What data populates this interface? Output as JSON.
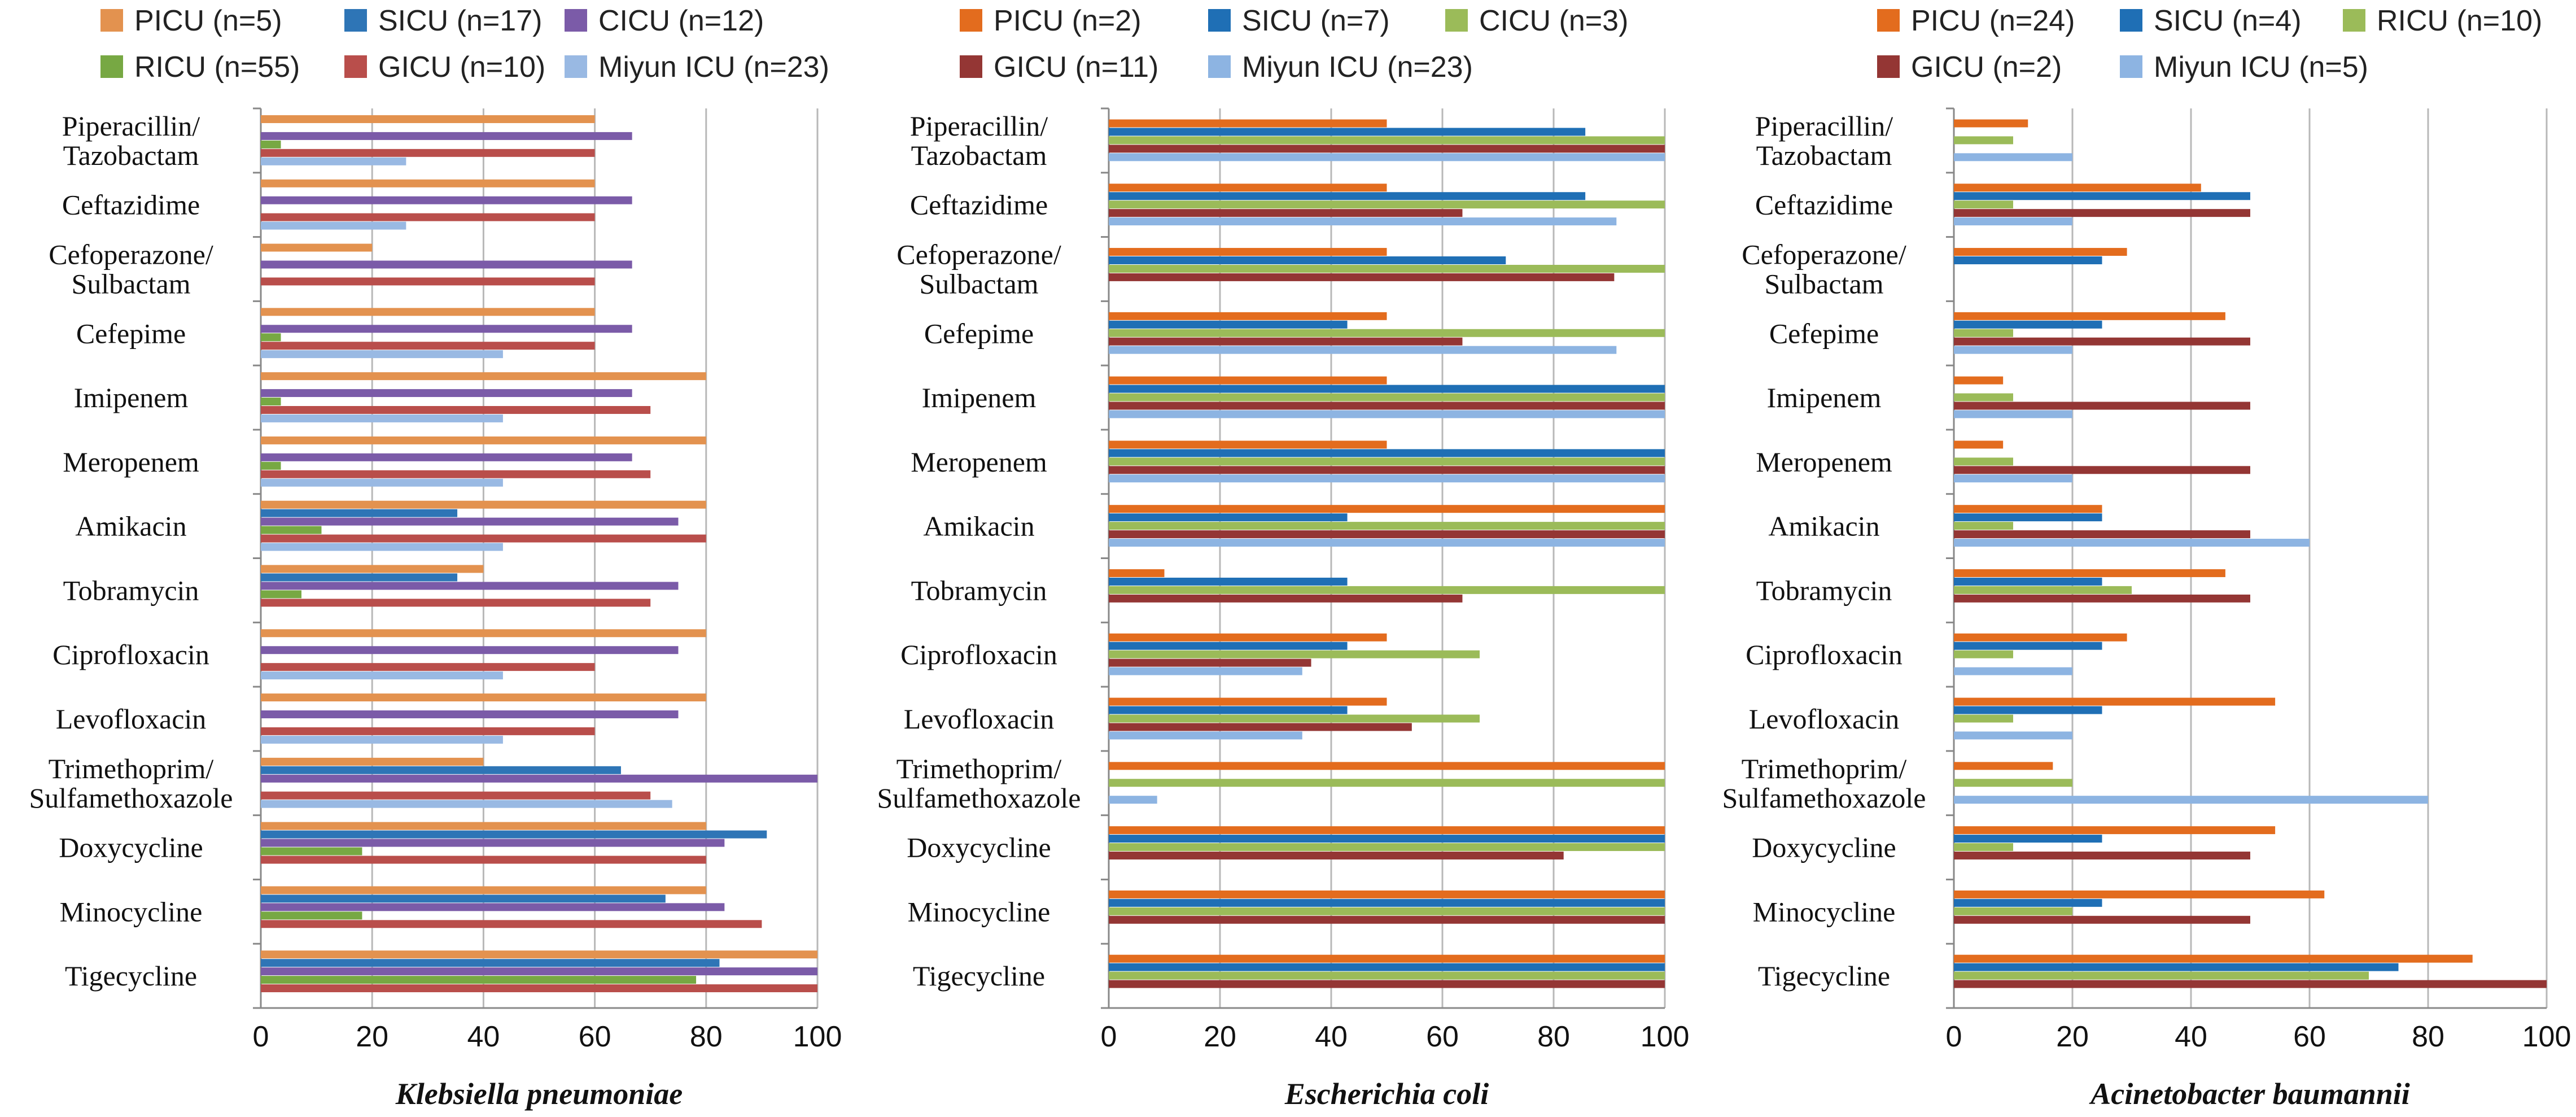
{
  "chart_data": [
    {
      "type": "bar",
      "orientation": "horizontal",
      "title": "",
      "xlabel": "Klebsiella pneumoniae",
      "ylabel": "",
      "xlim": [
        0,
        100
      ],
      "xticks": [
        0,
        20,
        40,
        60,
        80,
        100
      ],
      "grid": true,
      "legend_position": "top",
      "categories": [
        "Piperacillin/\nTazobactam",
        "Ceftazidime",
        "Cefoperazone/\nSulbactam",
        "Cefepime",
        "Imipenem",
        "Meropenem",
        "Amikacin",
        "Tobramycin",
        "Ciprofloxacin",
        "Levofloxacin",
        "Trimethoprim/\nSulfamethoxazole",
        "Doxycycline",
        "Minocycline",
        "Tigecycline"
      ],
      "series": [
        {
          "name": "PICU (n=5)",
          "color": "#E3924F",
          "values": [
            60,
            60,
            20,
            60,
            80,
            80,
            80,
            40,
            80,
            80,
            40,
            80,
            80,
            100
          ]
        },
        {
          "name": "SICU (n=17)",
          "color": "#2E75B6",
          "values": [
            0,
            0,
            0,
            0,
            0,
            0,
            35.3,
            35.3,
            0,
            0,
            64.7,
            90.9,
            72.7,
            82.4
          ]
        },
        {
          "name": "CICU (n=12)",
          "color": "#7B5BA8",
          "values": [
            66.7,
            66.7,
            66.7,
            66.7,
            66.7,
            66.7,
            75,
            75,
            75,
            75,
            100,
            83.3,
            83.3,
            100
          ]
        },
        {
          "name": "RICU (n=55)",
          "color": "#77A843",
          "values": [
            3.6,
            0,
            0,
            3.6,
            3.6,
            3.6,
            10.9,
            7.3,
            0,
            0,
            0,
            18.2,
            18.2,
            78.2
          ]
        },
        {
          "name": "GICU (n=10)",
          "color": "#B94E4B",
          "values": [
            60,
            60,
            60,
            60,
            70,
            70,
            80,
            70,
            60,
            60,
            70,
            80,
            90,
            100
          ]
        },
        {
          "name": "Miyun ICU (n=23)",
          "color": "#99B9E3",
          "values": [
            26.1,
            26.1,
            0,
            43.5,
            43.5,
            43.5,
            43.5,
            0,
            43.5,
            43.5,
            73.9,
            0,
            0,
            0
          ]
        }
      ],
      "legend_order": [
        [
          "PICU (n=5)",
          "SICU (n=17)",
          "CICU (n=12)"
        ],
        [
          "RICU (n=55)",
          "GICU (n=10)",
          "Miyun ICU (n=23)"
        ]
      ]
    },
    {
      "type": "bar",
      "orientation": "horizontal",
      "title": "",
      "xlabel": "Escherichia coli",
      "ylabel": "",
      "xlim": [
        0,
        100
      ],
      "xticks": [
        0,
        20,
        40,
        60,
        80,
        100
      ],
      "grid": true,
      "legend_position": "top",
      "categories": [
        "Piperacillin/\nTazobactam",
        "Ceftazidime",
        "Cefoperazone/\nSulbactam",
        "Cefepime",
        "Imipenem",
        "Meropenem",
        "Amikacin",
        "Tobramycin",
        "Ciprofloxacin",
        "Levofloxacin",
        "Trimethoprim/\nSulfamethoxazole",
        "Doxycycline",
        "Minocycline",
        "Tigecycline"
      ],
      "series": [
        {
          "name": "PICU (n=2)",
          "color": "#E36C1E",
          "values": [
            50,
            50,
            50,
            50,
            50,
            50,
            100,
            10,
            50,
            50,
            100,
            100,
            100,
            100
          ]
        },
        {
          "name": "SICU (n=7)",
          "color": "#1F6FB5",
          "values": [
            85.7,
            85.7,
            71.4,
            42.9,
            100,
            100,
            42.9,
            42.9,
            42.9,
            42.9,
            0,
            100,
            100,
            100
          ]
        },
        {
          "name": "CICU (n=3)",
          "color": "#9BBB59",
          "values": [
            100,
            100,
            100,
            100,
            100,
            100,
            100,
            100,
            66.7,
            66.7,
            100,
            100,
            100,
            100
          ]
        },
        {
          "name": "GICU (n=11)",
          "color": "#943634",
          "values": [
            100,
            63.6,
            90.9,
            63.6,
            100,
            100,
            100,
            63.6,
            36.4,
            54.5,
            0,
            81.8,
            100,
            100
          ]
        },
        {
          "name": "Miyun ICU (n=23)",
          "color": "#8DB4E2",
          "values": [
            100,
            91.3,
            0,
            91.3,
            100,
            100,
            100,
            0,
            34.8,
            34.8,
            8.7,
            0,
            0,
            0
          ]
        }
      ],
      "legend_order": [
        [
          "PICU (n=2)",
          "SICU (n=7)",
          "CICU (n=3)"
        ],
        [
          "GICU (n=11)",
          "Miyun ICU (n=23)"
        ]
      ]
    },
    {
      "type": "bar",
      "orientation": "horizontal",
      "title": "",
      "xlabel": "Acinetobacter baumannii",
      "ylabel": "",
      "xlim": [
        0,
        100
      ],
      "xticks": [
        0,
        20,
        40,
        60,
        80,
        100
      ],
      "grid": true,
      "legend_position": "top",
      "categories": [
        "Piperacillin/\nTazobactam",
        "Ceftazidime",
        "Cefoperazone/\nSulbactam",
        "Cefepime",
        "Imipenem",
        "Meropenem",
        "Amikacin",
        "Tobramycin",
        "Ciprofloxacin",
        "Levofloxacin",
        "Trimethoprim/\nSulfamethoxazole",
        "Doxycycline",
        "Minocycline",
        "Tigecycline"
      ],
      "series": [
        {
          "name": "PICU (n=24)",
          "color": "#E36C1E",
          "values": [
            12.5,
            41.7,
            29.2,
            45.8,
            8.3,
            8.3,
            25,
            45.8,
            29.2,
            54.2,
            16.7,
            54.2,
            62.5,
            87.5
          ]
        },
        {
          "name": "SICU (n=4)",
          "color": "#1F6FB5",
          "values": [
            0,
            50,
            25,
            25,
            0,
            0,
            25,
            25,
            25,
            25,
            0,
            25,
            25,
            75
          ]
        },
        {
          "name": "RICU (n=10)",
          "color": "#9BBB59",
          "values": [
            10,
            10,
            0,
            10,
            10,
            10,
            10,
            30,
            10,
            10,
            20,
            10,
            20,
            70
          ]
        },
        {
          "name": "GICU (n=2)",
          "color": "#943634",
          "values": [
            0,
            50,
            0,
            50,
            50,
            50,
            50,
            50,
            0,
            0,
            0,
            50,
            50,
            100
          ]
        },
        {
          "name": "Miyun ICU (n=5)",
          "color": "#8DB4E2",
          "values": [
            20,
            20,
            0,
            20,
            20,
            20,
            60,
            0,
            20,
            20,
            80,
            0,
            0,
            0
          ]
        }
      ],
      "legend_order": [
        [
          "PICU (n=24)",
          "SICU (n=4)",
          "RICU (n=10)"
        ],
        [
          "GICU (n=2)",
          "Miyun ICU (n=5)"
        ]
      ]
    }
  ]
}
